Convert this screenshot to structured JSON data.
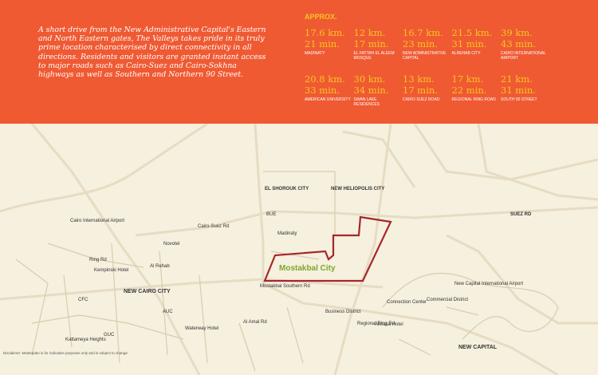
{
  "header": {
    "paragraph": "A short drive from the New Administrative Capital's Eastern and North Eastern gates, The Valleys takes pride in its truly prime location characterised by direct connectivity in all directions. Residents and visitors are granted instant access to major roads such as Cairo-Suez and Cairo-Sokhna highways as well as Southern and Northern 90 Street.",
    "approx": "APPROX.",
    "destinations": [
      {
        "distance": "17.6 km.",
        "time": "21 min.",
        "name": "MADINATY"
      },
      {
        "distance": "12 km.",
        "time": "17 min.",
        "name": "EL FATTAH EL ALEEM MOSQUE"
      },
      {
        "distance": "16.7 km.",
        "time": "23 min.",
        "name": "NEW ADMINISTRATIVE CAPITAL"
      },
      {
        "distance": "21.5 km.",
        "time": "31 min.",
        "name": "ALREHAB CITY"
      },
      {
        "distance": "39 km.",
        "time": "43 min.",
        "name": "CAIRO INTERNATIONAL AIRPORT"
      },
      {
        "distance": "20.8 km.",
        "time": "33 min.",
        "name": "AMERICAN UNIVERSITY"
      },
      {
        "distance": "30 km.",
        "time": "34 min.",
        "name": "SWAN LAKE RESIDENCES"
      },
      {
        "distance": "13 km.",
        "time": "17 min.",
        "name": "CAIRO SUEZ ROAD"
      },
      {
        "distance": "17 km.",
        "time": "22 min.",
        "name": "REGIONAL RING ROAD"
      },
      {
        "distance": "21 km.",
        "time": "31 min.",
        "name": "SOUTH 90 STREET"
      }
    ]
  },
  "map": {
    "labels": [
      "EL SHOROUK CITY",
      "NEW HELIOPOLIS CITY",
      "BUE",
      "Cairo International Airport",
      "SUEZ RD",
      "Madinaty",
      "Cairo-Suez Rd",
      "Mostakbal City",
      "Ring Rd",
      "Kempinski Hotel",
      "Novotel",
      "Al Rehab",
      "NEW CAIRO CITY",
      "CFC",
      "AUC",
      "GUC",
      "Kattameya Heights",
      "Waterway Hotel",
      "New Capital International Airport",
      "Connection Center",
      "Commercial District",
      "Business District",
      "Almasa Hotel",
      "NEW CAPITAL",
      "Mostakbal Southern Rd",
      "Regional Ring Rd",
      "Al Amal Rd"
    ],
    "disclaimer": "Disclaimer: Masterplan is for indicative purposes only and is subject to change."
  }
}
